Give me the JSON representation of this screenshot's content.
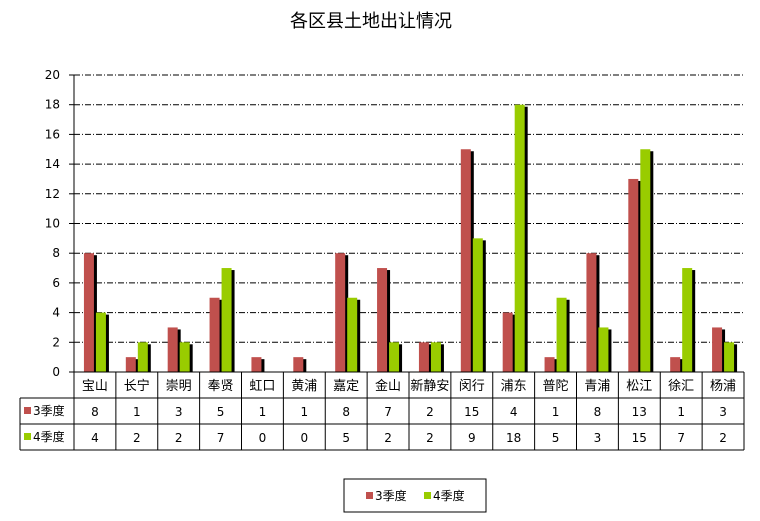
{
  "chart_data": {
    "type": "bar",
    "title": "各区县土地出让情况",
    "xlabel": "",
    "ylabel": "",
    "ylim": [
      0,
      20
    ],
    "yticks": [
      0,
      2,
      4,
      6,
      8,
      10,
      12,
      14,
      16,
      18,
      20
    ],
    "categories": [
      "宝山",
      "长宁",
      "崇明",
      "奉贤",
      "虹口",
      "黄浦",
      "嘉定",
      "金山",
      "新静安",
      "闵行",
      "浦东",
      "普陀",
      "青浦",
      "松江",
      "徐汇",
      "杨浦"
    ],
    "series": [
      {
        "name": "3季度",
        "color": "#c0504d",
        "values": [
          8,
          1,
          3,
          5,
          1,
          1,
          8,
          7,
          2,
          15,
          4,
          1,
          8,
          13,
          1,
          3
        ]
      },
      {
        "name": "4季度",
        "color": "#99cc00",
        "values": [
          4,
          2,
          2,
          7,
          0,
          0,
          5,
          2,
          2,
          9,
          18,
          5,
          3,
          15,
          7,
          2
        ]
      }
    ],
    "grid": true,
    "legend_position": "bottom-center",
    "data_table": true
  }
}
